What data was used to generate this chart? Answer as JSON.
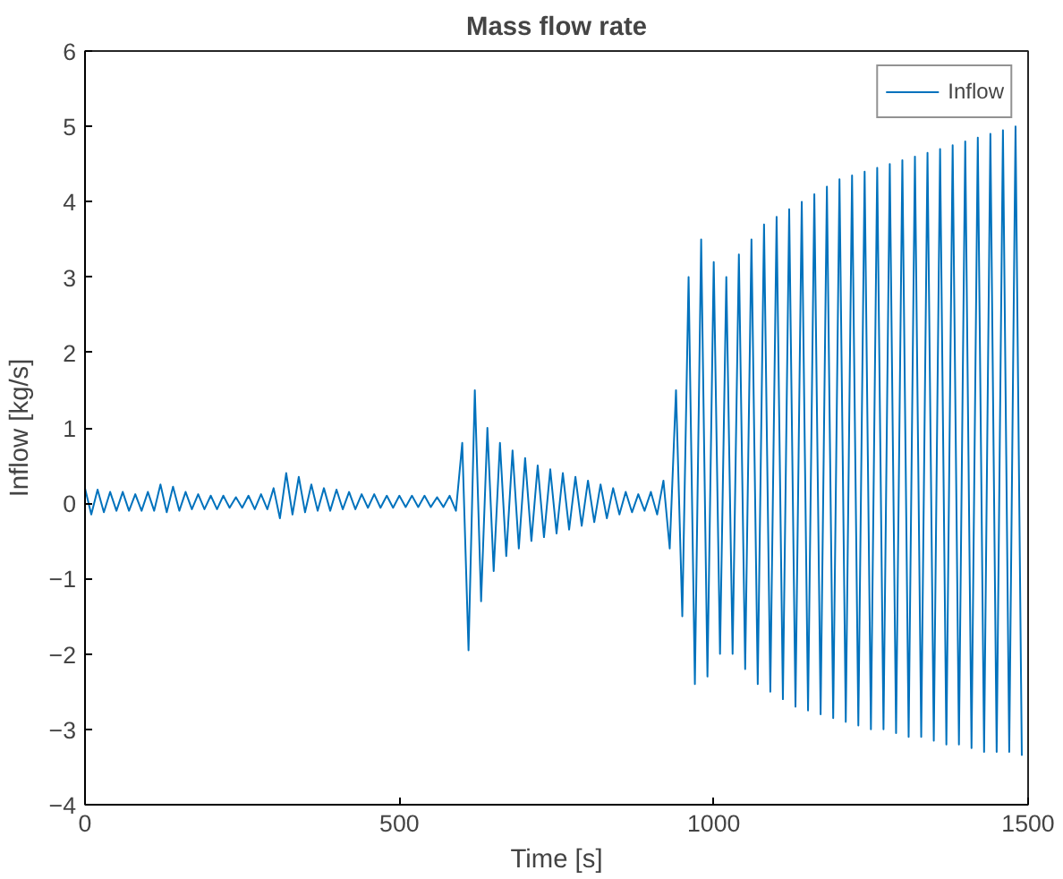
{
  "chart_data": {
    "type": "line",
    "title": "Mass flow rate",
    "xlabel": "Time [s]",
    "ylabel": "Inflow [kg/s]",
    "xlim": [
      0,
      1500
    ],
    "ylim": [
      -4,
      6
    ],
    "xticks": [
      0,
      500,
      1000,
      1500
    ],
    "yticks": [
      -4,
      -3,
      -2,
      -1,
      0,
      1,
      2,
      3,
      4,
      5,
      6
    ],
    "grid": false,
    "legend": "top right",
    "series": [
      {
        "name": "Inflow",
        "color": "#0072bd",
        "x": [
          0,
          10,
          20,
          30,
          40,
          50,
          60,
          70,
          80,
          90,
          100,
          110,
          120,
          130,
          140,
          150,
          160,
          170,
          180,
          190,
          200,
          210,
          220,
          230,
          240,
          250,
          260,
          270,
          280,
          290,
          300,
          310,
          320,
          330,
          340,
          350,
          360,
          370,
          380,
          390,
          400,
          410,
          420,
          430,
          440,
          450,
          460,
          470,
          480,
          490,
          500,
          510,
          520,
          530,
          540,
          550,
          560,
          570,
          580,
          590,
          600,
          610,
          620,
          630,
          640,
          650,
          660,
          670,
          680,
          690,
          700,
          710,
          720,
          730,
          740,
          750,
          760,
          770,
          780,
          790,
          800,
          810,
          820,
          830,
          840,
          850,
          860,
          870,
          880,
          890,
          900,
          910,
          920,
          930,
          940,
          950,
          960,
          970,
          980,
          990,
          1000,
          1010,
          1020,
          1030,
          1040,
          1050,
          1060,
          1070,
          1080,
          1090,
          1100,
          1110,
          1120,
          1130,
          1140,
          1150,
          1160,
          1170,
          1180,
          1190,
          1200,
          1210,
          1220,
          1230,
          1240,
          1250,
          1260,
          1270,
          1280,
          1290,
          1300,
          1310,
          1320,
          1330,
          1340,
          1350,
          1360,
          1370,
          1380,
          1390,
          1400,
          1410,
          1420,
          1430,
          1440,
          1450,
          1460,
          1470,
          1480,
          1490
        ],
        "values": [
          0.2,
          -0.15,
          0.18,
          -0.12,
          0.15,
          -0.1,
          0.15,
          -0.1,
          0.12,
          -0.1,
          0.15,
          -0.1,
          0.25,
          -0.12,
          0.22,
          -0.1,
          0.15,
          -0.08,
          0.12,
          -0.08,
          0.1,
          -0.08,
          0.1,
          -0.06,
          0.08,
          -0.06,
          0.1,
          -0.08,
          0.12,
          -0.08,
          0.2,
          -0.2,
          0.4,
          -0.15,
          0.35,
          -0.12,
          0.25,
          -0.1,
          0.2,
          -0.1,
          0.18,
          -0.08,
          0.15,
          -0.08,
          0.12,
          -0.06,
          0.12,
          -0.06,
          0.1,
          -0.06,
          0.1,
          -0.05,
          0.1,
          -0.05,
          0.1,
          -0.05,
          0.08,
          -0.05,
          0.1,
          -0.1,
          0.8,
          -1.95,
          1.5,
          -1.3,
          1.0,
          -0.9,
          0.8,
          -0.7,
          0.7,
          -0.6,
          0.6,
          -0.5,
          0.5,
          -0.45,
          0.45,
          -0.4,
          0.4,
          -0.35,
          0.35,
          -0.3,
          0.3,
          -0.25,
          0.25,
          -0.2,
          0.2,
          -0.15,
          0.15,
          -0.12,
          0.12,
          -0.1,
          0.15,
          -0.15,
          0.3,
          -0.6,
          1.5,
          -1.5,
          3.0,
          -2.4,
          3.5,
          -2.3,
          3.2,
          -2.0,
          3.0,
          -2.0,
          3.3,
          -2.2,
          3.5,
          -2.4,
          3.7,
          -2.5,
          3.8,
          -2.6,
          3.9,
          -2.7,
          4.0,
          -2.75,
          4.1,
          -2.8,
          4.2,
          -2.85,
          4.3,
          -2.9,
          4.35,
          -2.95,
          4.4,
          -3.0,
          4.45,
          -3.0,
          4.5,
          -3.05,
          4.55,
          -3.1,
          4.6,
          -3.1,
          4.65,
          -3.15,
          4.7,
          -3.2,
          4.75,
          -3.2,
          4.8,
          -3.25,
          4.85,
          -3.3,
          4.9,
          -3.3,
          4.95,
          -3.3,
          5.0,
          -3.35
        ]
      }
    ]
  }
}
